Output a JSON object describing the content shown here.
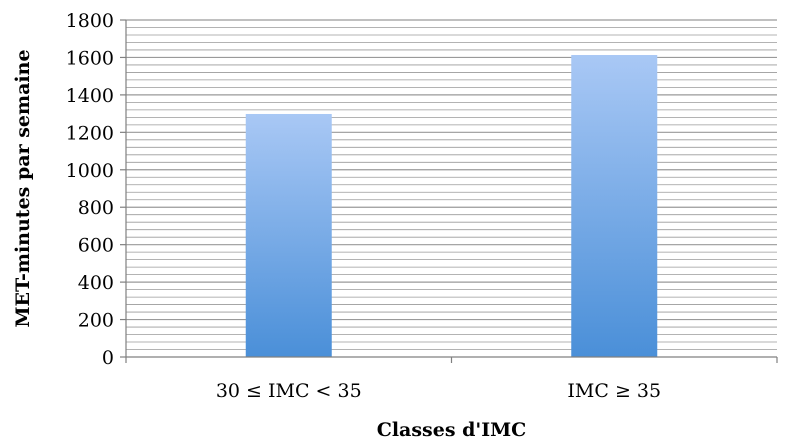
{
  "chart_data": {
    "type": "bar",
    "categories": [
      "30 ≤ IMC < 35",
      "IMC ≥ 35"
    ],
    "values": [
      1298,
      1613
    ],
    "title": "",
    "xlabel": "Classes d'IMC",
    "ylabel": "MET-minutes par semaine",
    "ylim": [
      0,
      1800
    ],
    "yticks": [
      0,
      200,
      400,
      600,
      800,
      1000,
      1200,
      1400,
      1600,
      1800
    ],
    "grid": true,
    "legend": "none",
    "colors": {
      "bar_top": "#A9C8F5",
      "bar_bottom": "#4A8FD8",
      "grid": "#9A9A9A",
      "axis": "#808080"
    }
  }
}
